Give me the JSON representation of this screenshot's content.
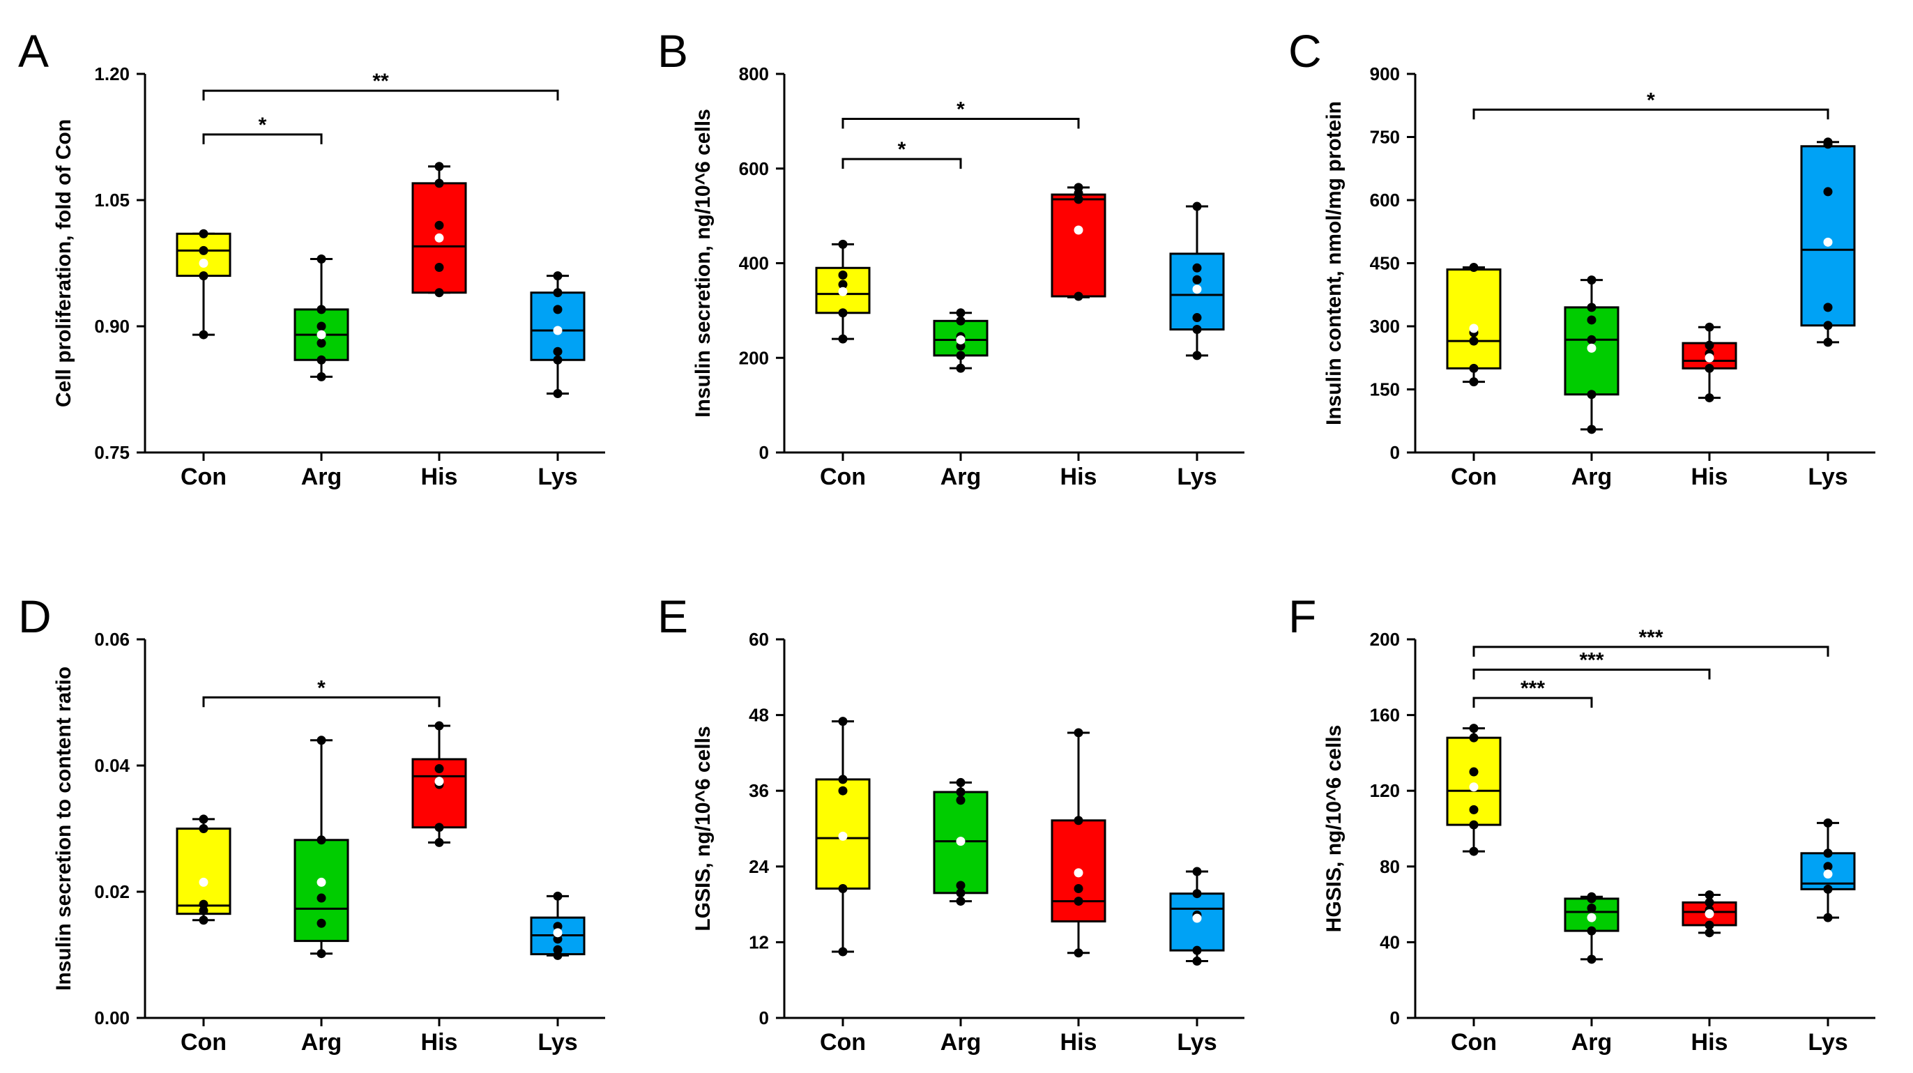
{
  "figure": {
    "background": "#ffffff"
  },
  "colors": {
    "Con": "#ffff00",
    "Arg": "#00cc00",
    "His": "#ff0000",
    "Lys": "#00a2f5"
  },
  "chart_data": [
    {
      "panel": "A",
      "type": "box",
      "ylabel": "Cell proliferation, fold of Con",
      "ylim": [
        0.75,
        1.2
      ],
      "yticks": [
        "0.75",
        "0.90",
        "1.05",
        "1.20"
      ],
      "categories": [
        "Con",
        "Arg",
        "His",
        "Lys"
      ],
      "boxes": [
        {
          "min": 0.89,
          "q1": 0.96,
          "median": 0.99,
          "q3": 1.01,
          "max": 1.01,
          "mean": 0.975,
          "points": [
            1.01,
            0.99,
            0.96,
            0.89
          ]
        },
        {
          "min": 0.84,
          "q1": 0.86,
          "median": 0.89,
          "q3": 0.92,
          "max": 0.98,
          "mean": 0.89,
          "points": [
            0.98,
            0.92,
            0.9,
            0.88,
            0.86,
            0.84
          ]
        },
        {
          "min": 0.94,
          "q1": 0.94,
          "median": 0.995,
          "q3": 1.07,
          "max": 1.09,
          "mean": 1.005,
          "points": [
            1.09,
            1.07,
            1.02,
            0.97,
            0.94
          ]
        },
        {
          "min": 0.82,
          "q1": 0.86,
          "median": 0.895,
          "q3": 0.94,
          "max": 0.96,
          "mean": 0.895,
          "points": [
            0.96,
            0.94,
            0.92,
            0.87,
            0.86,
            0.82
          ]
        }
      ],
      "brackets": [
        {
          "from": "Con",
          "to": "Arg",
          "y": 1.128,
          "label": "*"
        },
        {
          "from": "Con",
          "to": "Lys",
          "y": 1.18,
          "label": "**"
        }
      ]
    },
    {
      "panel": "B",
      "type": "box",
      "ylabel": "Insulin secretion, ng/10^6 cells",
      "ylim": [
        0,
        800
      ],
      "yticks": [
        "0",
        "200",
        "400",
        "600",
        "800"
      ],
      "categories": [
        "Con",
        "Arg",
        "His",
        "Lys"
      ],
      "boxes": [
        {
          "min": 240,
          "q1": 295,
          "median": 335,
          "q3": 390,
          "max": 440,
          "mean": 340,
          "points": [
            440,
            375,
            355,
            295,
            240
          ]
        },
        {
          "min": 178,
          "q1": 205,
          "median": 238,
          "q3": 278,
          "max": 295,
          "mean": 238,
          "points": [
            295,
            278,
            245,
            225,
            205,
            178
          ]
        },
        {
          "min": 328,
          "q1": 330,
          "median": 535,
          "q3": 545,
          "max": 560,
          "mean": 470,
          "points": [
            560,
            548,
            535,
            330
          ]
        },
        {
          "min": 205,
          "q1": 260,
          "median": 333,
          "q3": 420,
          "max": 520,
          "mean": 345,
          "points": [
            520,
            390,
            365,
            285,
            260,
            205
          ]
        }
      ],
      "brackets": [
        {
          "from": "Con",
          "to": "Arg",
          "y": 620,
          "label": "*"
        },
        {
          "from": "Con",
          "to": "His",
          "y": 705,
          "label": "*"
        }
      ]
    },
    {
      "panel": "C",
      "type": "box",
      "ylabel": "Insulin content, nmol/mg protein",
      "ylim": [
        0,
        900
      ],
      "yticks": [
        "0",
        "150",
        "300",
        "450",
        "600",
        "750",
        "900"
      ],
      "categories": [
        "Con",
        "Arg",
        "His",
        "Lys"
      ],
      "boxes": [
        {
          "min": 168,
          "q1": 200,
          "median": 265,
          "q3": 435,
          "max": 440,
          "mean": 295,
          "points": [
            440,
            285,
            265,
            200,
            168
          ]
        },
        {
          "min": 55,
          "q1": 138,
          "median": 268,
          "q3": 345,
          "max": 410,
          "mean": 248,
          "points": [
            410,
            345,
            315,
            268,
            138,
            55
          ]
        },
        {
          "min": 130,
          "q1": 200,
          "median": 218,
          "q3": 260,
          "max": 298,
          "mean": 225,
          "points": [
            298,
            255,
            235,
            200,
            130
          ]
        },
        {
          "min": 262,
          "q1": 302,
          "median": 482,
          "q3": 728,
          "max": 738,
          "mean": 500,
          "points": [
            738,
            733,
            620,
            345,
            302,
            262
          ]
        }
      ],
      "brackets": [
        {
          "from": "Con",
          "to": "Lys",
          "y": 815,
          "label": "*"
        }
      ]
    },
    {
      "panel": "D",
      "type": "box",
      "ylabel": "Insulin secretion to content ratio",
      "ylim": [
        0,
        0.06
      ],
      "yticks": [
        "0.00",
        "0.02",
        "0.04",
        "0.06"
      ],
      "categories": [
        "Con",
        "Arg",
        "His",
        "Lys"
      ],
      "boxes": [
        {
          "min": 0.0155,
          "q1": 0.0165,
          "median": 0.0178,
          "q3": 0.03,
          "max": 0.0315,
          "mean": 0.0215,
          "points": [
            0.0315,
            0.03,
            0.018,
            0.017,
            0.0155
          ]
        },
        {
          "min": 0.0102,
          "q1": 0.0122,
          "median": 0.0173,
          "q3": 0.0282,
          "max": 0.044,
          "mean": 0.0215,
          "points": [
            0.044,
            0.0282,
            0.019,
            0.015,
            0.0102
          ]
        },
        {
          "min": 0.0278,
          "q1": 0.0302,
          "median": 0.0383,
          "q3": 0.041,
          "max": 0.0463,
          "mean": 0.0375,
          "points": [
            0.0463,
            0.0395,
            0.037,
            0.0302,
            0.0278
          ]
        },
        {
          "min": 0.0099,
          "q1": 0.0101,
          "median": 0.0131,
          "q3": 0.0159,
          "max": 0.0193,
          "mean": 0.0135,
          "points": [
            0.0193,
            0.0145,
            0.0125,
            0.0108,
            0.0099
          ]
        }
      ],
      "brackets": [
        {
          "from": "Con",
          "to": "His",
          "y": 0.0508,
          "label": "*"
        }
      ]
    },
    {
      "panel": "E",
      "type": "box",
      "ylabel": "LGSIS, ng/10^6 cells",
      "ylim": [
        0,
        60
      ],
      "yticks": [
        "0",
        "12",
        "24",
        "36",
        "48",
        "60"
      ],
      "categories": [
        "Con",
        "Arg",
        "His",
        "Lys"
      ],
      "boxes": [
        {
          "min": 10.5,
          "q1": 20.5,
          "median": 28.5,
          "q3": 37.8,
          "max": 47.0,
          "mean": 28.8,
          "points": [
            47.0,
            37.8,
            36.0,
            20.5,
            10.5
          ]
        },
        {
          "min": 18.5,
          "q1": 19.8,
          "median": 28.0,
          "q3": 35.8,
          "max": 37.3,
          "mean": 28.0,
          "points": [
            37.3,
            35.8,
            34.5,
            21.0,
            19.8,
            18.5
          ]
        },
        {
          "min": 10.3,
          "q1": 15.3,
          "median": 18.5,
          "q3": 31.3,
          "max": 45.2,
          "mean": 23.0,
          "points": [
            45.2,
            31.3,
            20.5,
            18.5,
            10.3
          ]
        },
        {
          "min": 9.0,
          "q1": 10.7,
          "median": 17.3,
          "q3": 19.7,
          "max": 23.2,
          "mean": 15.8,
          "points": [
            23.2,
            19.7,
            16.3,
            10.7,
            9.0
          ]
        }
      ],
      "brackets": []
    },
    {
      "panel": "F",
      "type": "box",
      "ylabel": "HGSIS, ng/10^6 cells",
      "ylim": [
        0,
        200
      ],
      "yticks": [
        "0",
        "40",
        "80",
        "120",
        "160",
        "200"
      ],
      "categories": [
        "Con",
        "Arg",
        "His",
        "Lys"
      ],
      "boxes": [
        {
          "min": 88,
          "q1": 102,
          "median": 120,
          "q3": 148,
          "max": 153,
          "mean": 122,
          "points": [
            153,
            148,
            130,
            110,
            102,
            88
          ]
        },
        {
          "min": 31,
          "q1": 46,
          "median": 56,
          "q3": 63,
          "max": 64,
          "mean": 53,
          "points": [
            64,
            63,
            58,
            46,
            31
          ]
        },
        {
          "min": 45,
          "q1": 49,
          "median": 56,
          "q3": 61,
          "max": 65,
          "mean": 55,
          "points": [
            65,
            61,
            57,
            49,
            45
          ]
        },
        {
          "min": 53,
          "q1": 68,
          "median": 71,
          "q3": 87,
          "max": 103,
          "mean": 76,
          "points": [
            103,
            87,
            80,
            68,
            53
          ]
        }
      ],
      "brackets": [
        {
          "from": "Con",
          "to": "Arg",
          "y": 169,
          "label": "***"
        },
        {
          "from": "Con",
          "to": "His",
          "y": 184,
          "label": "***"
        },
        {
          "from": "Con",
          "to": "Lys",
          "y": 196,
          "label": "***"
        }
      ]
    }
  ]
}
